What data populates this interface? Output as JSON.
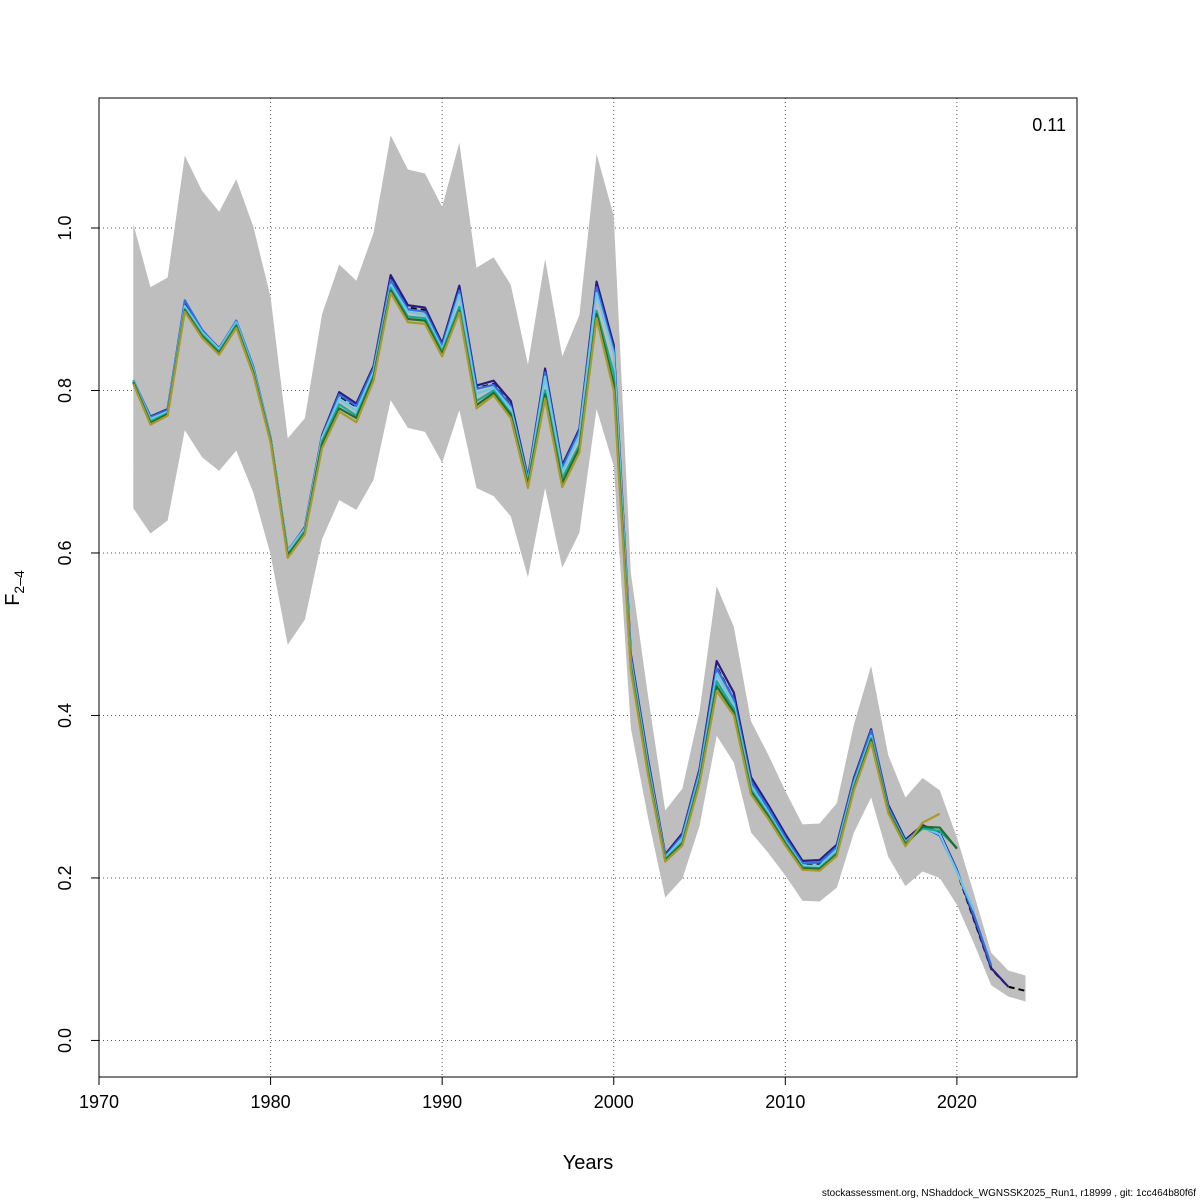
{
  "chart_data": {
    "type": "line",
    "title": "",
    "xlabel": "Years",
    "ylabel_main": "F",
    "ylabel_sub": "2–4",
    "annotation": "0.11",
    "footer": "stockassessment.org, NShaddock_WGNSSK2025_Run1, r18999 , git: 1cc464b80f6f",
    "xlim": [
      1970,
      2027
    ],
    "ylim": [
      -0.045,
      1.16
    ],
    "xticks": [
      1970,
      1980,
      1990,
      2000,
      2010,
      2020
    ],
    "yticks": [
      0.0,
      0.2,
      0.4,
      0.6,
      0.8,
      1.0
    ],
    "xtick_labels": [
      "1970",
      "1980",
      "1990",
      "2000",
      "2010",
      "2020"
    ],
    "ytick_labels": [
      "0.0",
      "0.2",
      "0.4",
      "0.6",
      "0.8",
      "1.0"
    ],
    "grid": true,
    "band": {
      "color": "#bebebe",
      "x": [
        1972,
        1973,
        1974,
        1975,
        1976,
        1977,
        1978,
        1979,
        1980,
        1981,
        1982,
        1983,
        1984,
        1985,
        1986,
        1987,
        1988,
        1989,
        1990,
        1991,
        1992,
        1993,
        1994,
        1995,
        1996,
        1997,
        1998,
        1999,
        2000,
        2001,
        2002,
        2003,
        2004,
        2005,
        2006,
        2007,
        2008,
        2009,
        2010,
        2011,
        2012,
        2013,
        2014,
        2015,
        2016,
        2017,
        2018,
        2019,
        2020,
        2021,
        2022,
        2023,
        2024
      ],
      "upper": [
        1.005,
        0.927,
        0.939,
        1.089,
        1.046,
        1.02,
        1.06,
        1.001,
        0.915,
        0.741,
        0.766,
        0.894,
        0.955,
        0.935,
        0.994,
        1.114,
        1.072,
        1.067,
        1.026,
        1.105,
        0.951,
        0.964,
        0.93,
        0.832,
        0.962,
        0.842,
        0.893,
        1.091,
        1.015,
        0.575,
        0.424,
        0.283,
        0.31,
        0.405,
        0.559,
        0.509,
        0.393,
        0.352,
        0.307,
        0.266,
        0.267,
        0.292,
        0.389,
        0.461,
        0.351,
        0.299,
        0.323,
        0.308,
        0.25,
        0.18,
        0.108,
        0.086,
        0.08
      ],
      "lower": [
        0.655,
        0.624,
        0.64,
        0.751,
        0.718,
        0.701,
        0.726,
        0.674,
        0.598,
        0.487,
        0.518,
        0.617,
        0.665,
        0.653,
        0.69,
        0.788,
        0.754,
        0.749,
        0.711,
        0.776,
        0.68,
        0.67,
        0.645,
        0.57,
        0.68,
        0.582,
        0.625,
        0.777,
        0.707,
        0.384,
        0.274,
        0.176,
        0.199,
        0.264,
        0.375,
        0.342,
        0.256,
        0.231,
        0.203,
        0.172,
        0.171,
        0.188,
        0.256,
        0.299,
        0.226,
        0.19,
        0.208,
        0.2,
        0.167,
        0.119,
        0.068,
        0.054,
        0.048
      ]
    },
    "series": [
      {
        "color": "#000000",
        "dashed": true,
        "x": [
          1972,
          1973,
          1974,
          1975,
          1976,
          1977,
          1978,
          1979,
          1980,
          1981,
          1982,
          1983,
          1984,
          1985,
          1986,
          1987,
          1988,
          1989,
          1990,
          1991,
          1992,
          1993,
          1994,
          1995,
          1996,
          1997,
          1998,
          1999,
          2000,
          2001,
          2002,
          2003,
          2004,
          2005,
          2006,
          2007,
          2008,
          2009,
          2010,
          2011,
          2012,
          2013,
          2014,
          2015,
          2016,
          2017,
          2018,
          2019,
          2020,
          2021,
          2022,
          2023,
          2024
        ],
        "values": [
          0.812,
          0.766,
          0.775,
          0.905,
          0.872,
          0.851,
          0.883,
          0.826,
          0.74,
          0.6,
          0.629,
          0.742,
          0.793,
          0.78,
          0.825,
          0.939,
          0.902,
          0.899,
          0.854,
          0.924,
          0.803,
          0.808,
          0.782,
          0.69,
          0.822,
          0.704,
          0.749,
          0.929,
          0.851,
          0.47,
          0.341,
          0.225,
          0.25,
          0.328,
          0.46,
          0.42,
          0.318,
          0.284,
          0.249,
          0.217,
          0.217,
          0.236,
          0.318,
          0.377,
          0.286,
          0.244,
          0.262,
          0.253,
          0.208,
          0.148,
          0.088,
          0.066,
          0.061
        ]
      },
      {
        "color": "#2b1b80",
        "x": [
          1972,
          1973,
          1974,
          1975,
          1976,
          1977,
          1978,
          1979,
          1980,
          1981,
          1982,
          1983,
          1984,
          1985,
          1986,
          1987,
          1988,
          1989,
          1990,
          1991,
          1992,
          1993,
          1994,
          1995,
          1996,
          1997,
          1998,
          1999,
          2000,
          2001,
          2002,
          2003,
          2004,
          2005,
          2006,
          2007,
          2008,
          2009,
          2010,
          2011,
          2012,
          2013,
          2014,
          2015,
          2016,
          2017,
          2018,
          2019,
          2020,
          2021,
          2022,
          2023
        ],
        "values": [
          0.812,
          0.768,
          0.777,
          0.908,
          0.874,
          0.852,
          0.885,
          0.828,
          0.742,
          0.602,
          0.632,
          0.745,
          0.798,
          0.784,
          0.83,
          0.942,
          0.905,
          0.902,
          0.858,
          0.929,
          0.806,
          0.812,
          0.787,
          0.693,
          0.827,
          0.708,
          0.753,
          0.934,
          0.856,
          0.475,
          0.346,
          0.229,
          0.255,
          0.334,
          0.467,
          0.428,
          0.324,
          0.29,
          0.254,
          0.221,
          0.222,
          0.241,
          0.323,
          0.383,
          0.29,
          0.247,
          0.265,
          0.256,
          0.21,
          0.15,
          0.089,
          0.066
        ]
      },
      {
        "color": "#2f6fe0",
        "x": [
          1972,
          1973,
          1974,
          1975,
          1976,
          1977,
          1978,
          1979,
          1980,
          1981,
          1982,
          1983,
          1984,
          1985,
          1986,
          1987,
          1988,
          1989,
          1990,
          1991,
          1992,
          1993,
          1994,
          1995,
          1996,
          1997,
          1998,
          1999,
          2000,
          2001,
          2002,
          2003,
          2004,
          2005,
          2006,
          2007,
          2008,
          2009,
          2010,
          2011,
          2012,
          2013,
          2014,
          2015,
          2016,
          2017,
          2018,
          2019,
          2020,
          2021,
          2022
        ],
        "values": [
          0.813,
          0.767,
          0.776,
          0.911,
          0.875,
          0.851,
          0.886,
          0.829,
          0.741,
          0.603,
          0.631,
          0.743,
          0.795,
          0.781,
          0.827,
          0.936,
          0.9,
          0.897,
          0.855,
          0.923,
          0.802,
          0.807,
          0.781,
          0.691,
          0.822,
          0.705,
          0.75,
          0.927,
          0.85,
          0.471,
          0.342,
          0.227,
          0.252,
          0.331,
          0.458,
          0.42,
          0.319,
          0.286,
          0.25,
          0.218,
          0.219,
          0.238,
          0.32,
          0.381,
          0.287,
          0.245,
          0.263,
          0.252,
          0.209,
          0.154,
          0.092
        ]
      },
      {
        "color": "#6ec6e6",
        "x": [
          1972,
          1973,
          1974,
          1975,
          1976,
          1977,
          1978,
          1979,
          1980,
          1981,
          1982,
          1983,
          1984,
          1985,
          1986,
          1987,
          1988,
          1989,
          1990,
          1991,
          1992,
          1993,
          1994,
          1995,
          1996,
          1997,
          1998,
          1999,
          2000,
          2001,
          2002,
          2003,
          2004,
          2005,
          2006,
          2007,
          2008,
          2009,
          2010,
          2011,
          2012,
          2013,
          2014,
          2015,
          2016,
          2017,
          2018,
          2019,
          2020,
          2021
        ],
        "values": [
          0.812,
          0.765,
          0.774,
          0.904,
          0.872,
          0.851,
          0.884,
          0.826,
          0.741,
          0.602,
          0.63,
          0.742,
          0.79,
          0.775,
          0.823,
          0.93,
          0.897,
          0.893,
          0.851,
          0.918,
          0.796,
          0.803,
          0.778,
          0.688,
          0.817,
          0.7,
          0.745,
          0.92,
          0.845,
          0.467,
          0.338,
          0.225,
          0.249,
          0.326,
          0.451,
          0.414,
          0.314,
          0.281,
          0.246,
          0.215,
          0.215,
          0.235,
          0.316,
          0.375,
          0.284,
          0.244,
          0.262,
          0.254,
          0.207,
          0.16
        ]
      },
      {
        "color": "#1aa89a",
        "x": [
          1972,
          1973,
          1974,
          1975,
          1976,
          1977,
          1978,
          1979,
          1980,
          1981,
          1982,
          1983,
          1984,
          1985,
          1986,
          1987,
          1988,
          1989,
          1990,
          1991,
          1992,
          1993,
          1994,
          1995,
          1996,
          1997,
          1998,
          1999,
          2000,
          2001,
          2002,
          2003,
          2004,
          2005,
          2006,
          2007,
          2008,
          2009,
          2010,
          2011,
          2012,
          2013,
          2014,
          2015,
          2016,
          2017,
          2018,
          2019,
          2020
        ],
        "values": [
          0.811,
          0.762,
          0.772,
          0.9,
          0.869,
          0.848,
          0.881,
          0.823,
          0.739,
          0.598,
          0.627,
          0.737,
          0.783,
          0.769,
          0.818,
          0.926,
          0.891,
          0.889,
          0.848,
          0.903,
          0.787,
          0.8,
          0.772,
          0.686,
          0.8,
          0.692,
          0.733,
          0.898,
          0.821,
          0.462,
          0.333,
          0.223,
          0.244,
          0.322,
          0.442,
          0.408,
          0.309,
          0.278,
          0.244,
          0.213,
          0.212,
          0.231,
          0.312,
          0.372,
          0.283,
          0.243,
          0.261,
          0.258,
          0.237
        ]
      },
      {
        "color": "#1f6e2a",
        "x": [
          1972,
          1973,
          1974,
          1975,
          1976,
          1977,
          1978,
          1979,
          1980,
          1981,
          1982,
          1983,
          1984,
          1985,
          1986,
          1987,
          1988,
          1989,
          1990,
          1991,
          1992,
          1993,
          1994,
          1995,
          1996,
          1997,
          1998,
          1999,
          2000,
          2001,
          2002,
          2003,
          2004,
          2005,
          2006,
          2007,
          2008,
          2009,
          2010,
          2011,
          2012,
          2013,
          2014,
          2015,
          2016,
          2017,
          2018,
          2019,
          2020
        ],
        "values": [
          0.81,
          0.76,
          0.771,
          0.899,
          0.867,
          0.846,
          0.879,
          0.821,
          0.738,
          0.597,
          0.625,
          0.734,
          0.778,
          0.766,
          0.816,
          0.923,
          0.888,
          0.886,
          0.845,
          0.898,
          0.782,
          0.797,
          0.77,
          0.684,
          0.795,
          0.686,
          0.729,
          0.894,
          0.808,
          0.458,
          0.33,
          0.222,
          0.242,
          0.319,
          0.436,
          0.404,
          0.306,
          0.276,
          0.242,
          0.212,
          0.211,
          0.229,
          0.31,
          0.37,
          0.282,
          0.241,
          0.263,
          0.262,
          0.236
        ]
      },
      {
        "color": "#a89a2a",
        "x": [
          1972,
          1973,
          1974,
          1975,
          1976,
          1977,
          1978,
          1979,
          1980,
          1981,
          1982,
          1983,
          1984,
          1985,
          1986,
          1987,
          1988,
          1989,
          1990,
          1991,
          1992,
          1993,
          1994,
          1995,
          1996,
          1997,
          1998,
          1999,
          2000,
          2001,
          2002,
          2003,
          2004,
          2005,
          2006,
          2007,
          2008,
          2009,
          2010,
          2011,
          2012,
          2013,
          2014,
          2015,
          2016,
          2017,
          2018,
          2019
        ],
        "values": [
          0.808,
          0.758,
          0.769,
          0.897,
          0.865,
          0.844,
          0.877,
          0.819,
          0.736,
          0.594,
          0.623,
          0.729,
          0.774,
          0.761,
          0.812,
          0.92,
          0.884,
          0.882,
          0.842,
          0.896,
          0.778,
          0.794,
          0.766,
          0.68,
          0.79,
          0.681,
          0.724,
          0.889,
          0.8,
          0.455,
          0.327,
          0.22,
          0.24,
          0.316,
          0.43,
          0.4,
          0.303,
          0.273,
          0.24,
          0.21,
          0.209,
          0.227,
          0.308,
          0.367,
          0.28,
          0.239,
          0.268,
          0.279
        ]
      }
    ]
  }
}
